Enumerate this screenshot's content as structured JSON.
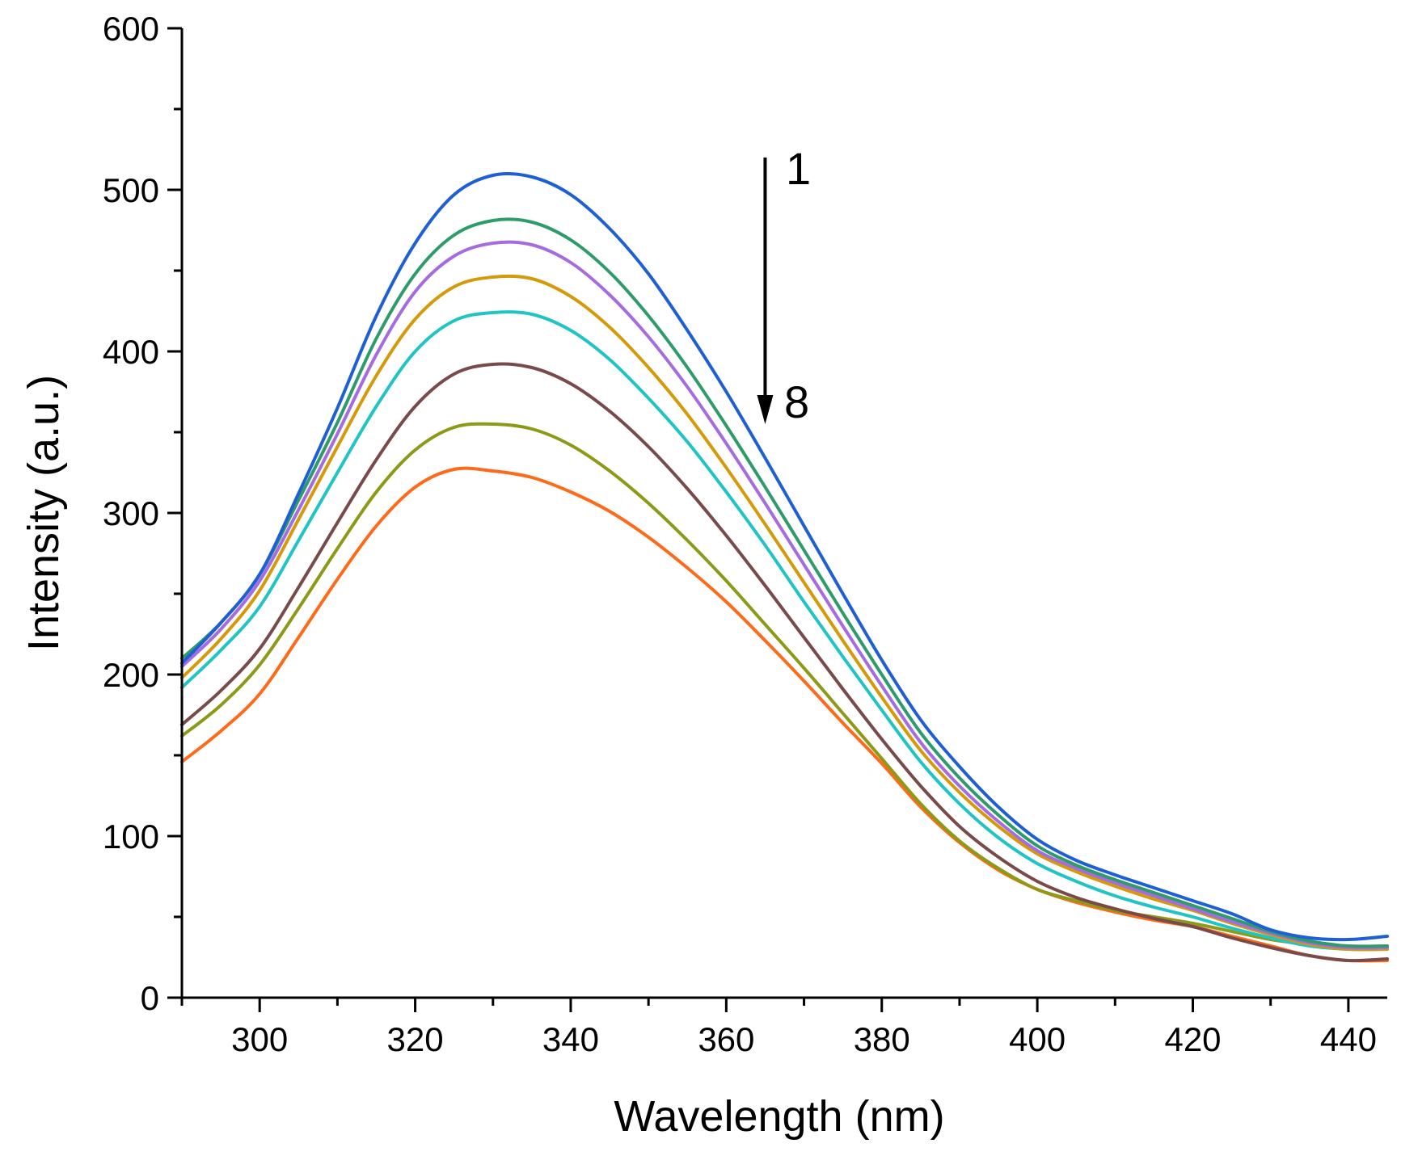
{
  "chart_data": {
    "type": "line",
    "xlabel": "Wavelength (nm)",
    "ylabel": "Intensity (a.u.)",
    "xlim": [
      290,
      445
    ],
    "ylim": [
      0,
      600
    ],
    "x_ticks": [
      300,
      320,
      340,
      360,
      380,
      400,
      420,
      440
    ],
    "y_ticks": [
      0,
      100,
      200,
      300,
      400,
      500,
      600
    ],
    "grid": false,
    "annotation": {
      "start_label": "1",
      "end_label": "8",
      "x": 365,
      "y_start": 520,
      "y_end": 355
    },
    "x": [
      290,
      295,
      300,
      305,
      310,
      315,
      320,
      325,
      330,
      335,
      340,
      345,
      350,
      355,
      360,
      365,
      370,
      375,
      380,
      385,
      390,
      395,
      400,
      405,
      410,
      415,
      420,
      425,
      430,
      435,
      440,
      445
    ],
    "series": [
      {
        "color": "#1f5fd6",
        "values": [
          207,
          232,
          262,
          312,
          365,
          422,
          467,
          497,
          509,
          508,
          497,
          476,
          448,
          413,
          375,
          334,
          292,
          250,
          209,
          172,
          143,
          118,
          98,
          85,
          76,
          68,
          60,
          52,
          42,
          37,
          36,
          38
        ]
      },
      {
        "color": "#2e9c6a",
        "values": [
          210,
          232,
          262,
          308,
          356,
          408,
          448,
          472,
          481,
          480,
          469,
          449,
          422,
          390,
          354,
          316,
          277,
          238,
          200,
          164,
          136,
          113,
          94,
          82,
          73,
          65,
          57,
          49,
          41,
          35,
          32,
          32
        ]
      },
      {
        "color": "#a56be0",
        "values": [
          205,
          228,
          258,
          302,
          349,
          398,
          437,
          459,
          467,
          466,
          455,
          435,
          409,
          378,
          343,
          306,
          268,
          230,
          193,
          158,
          131,
          109,
          91,
          80,
          71,
          63,
          55,
          47,
          40,
          34,
          31,
          31
        ]
      },
      {
        "color": "#d49a0a",
        "values": [
          198,
          222,
          252,
          296,
          341,
          385,
          420,
          440,
          446,
          445,
          434,
          415,
          390,
          361,
          328,
          293,
          257,
          221,
          186,
          153,
          127,
          106,
          89,
          78,
          69,
          61,
          54,
          46,
          39,
          33,
          30,
          30
        ]
      },
      {
        "color": "#21c4c4",
        "values": [
          192,
          215,
          242,
          283,
          325,
          366,
          400,
          419,
          424,
          423,
          413,
          395,
          371,
          344,
          313,
          280,
          245,
          211,
          178,
          146,
          120,
          99,
          83,
          72,
          63,
          56,
          50,
          43,
          37,
          32,
          30,
          30
        ]
      },
      {
        "color": "#7a4a4a",
        "values": [
          169,
          190,
          216,
          254,
          294,
          333,
          366,
          386,
          392,
          390,
          380,
          363,
          341,
          315,
          286,
          255,
          223,
          191,
          160,
          131,
          106,
          87,
          72,
          62,
          55,
          49,
          44,
          37,
          31,
          26,
          23,
          24
        ]
      },
      {
        "color": "#8d9a17",
        "values": [
          162,
          181,
          206,
          241,
          278,
          313,
          339,
          353,
          355,
          352,
          342,
          326,
          306,
          283,
          258,
          231,
          204,
          176,
          148,
          120,
          97,
          80,
          67,
          60,
          54,
          50,
          46,
          41,
          36,
          33,
          31,
          32
        ]
      },
      {
        "color": "#ff6a1a",
        "values": [
          146,
          165,
          188,
          223,
          259,
          292,
          316,
          327,
          326,
          322,
          313,
          301,
          285,
          266,
          245,
          221,
          196,
          170,
          145,
          118,
          96,
          79,
          67,
          59,
          53,
          48,
          44,
          38,
          32,
          26,
          23,
          23
        ]
      }
    ]
  }
}
